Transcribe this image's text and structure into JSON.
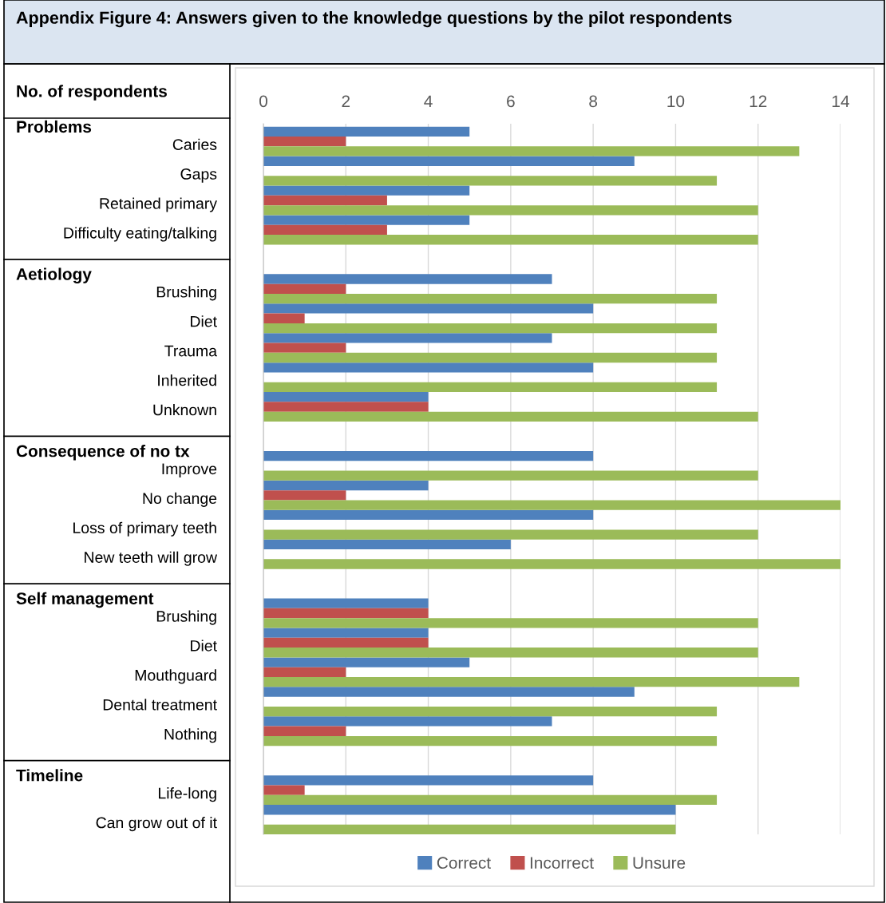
{
  "chart_data": {
    "type": "bar",
    "orientation": "horizontal",
    "title": "Appendix Figure 4: Answers given to the knowledge questions by the pilot respondents",
    "xlabel": "No. of respondents",
    "categories": [
      "Caries",
      "Gaps",
      "Retained primary",
      "Difficulty eating/talking",
      null,
      "Brushing",
      "Diet",
      "Trauma",
      "Inherited",
      "Unknown",
      null,
      "Improve",
      "No change",
      "Loss of primary teeth",
      "New teeth will grow",
      null,
      "Brushing",
      "Diet",
      "Mouthguard",
      "Dental treatment",
      "Nothing",
      null,
      "Life-long",
      "Can grow out of it"
    ],
    "series": [
      {
        "name": "Correct",
        "color": "#4f81bd",
        "values": [
          5,
          9,
          5,
          5,
          null,
          7,
          8,
          7,
          8,
          4,
          null,
          8,
          4,
          8,
          6,
          null,
          4,
          4,
          5,
          9,
          7,
          null,
          8,
          10
        ]
      },
      {
        "name": "Incorrect",
        "color": "#c0504d",
        "values": [
          2,
          0,
          3,
          3,
          null,
          2,
          1,
          2,
          0,
          4,
          null,
          0,
          2,
          0,
          0,
          null,
          4,
          4,
          2,
          0,
          2,
          null,
          1,
          0
        ]
      },
      {
        "name": "Unsure",
        "color": "#9bbb59",
        "values": [
          13,
          11,
          12,
          12,
          null,
          11,
          11,
          11,
          11,
          12,
          null,
          12,
          14,
          12,
          14,
          null,
          12,
          12,
          13,
          11,
          11,
          null,
          11,
          10
        ]
      }
    ],
    "annotations": [
      "Problems",
      "Aetiology",
      "Consequence of no tx",
      "Self management",
      "Timeline"
    ],
    "xlim": [
      0,
      14
    ],
    "xticks": [
      0,
      2,
      4,
      6,
      8,
      10,
      12,
      14
    ],
    "grid": "x",
    "legend": "bottom"
  }
}
